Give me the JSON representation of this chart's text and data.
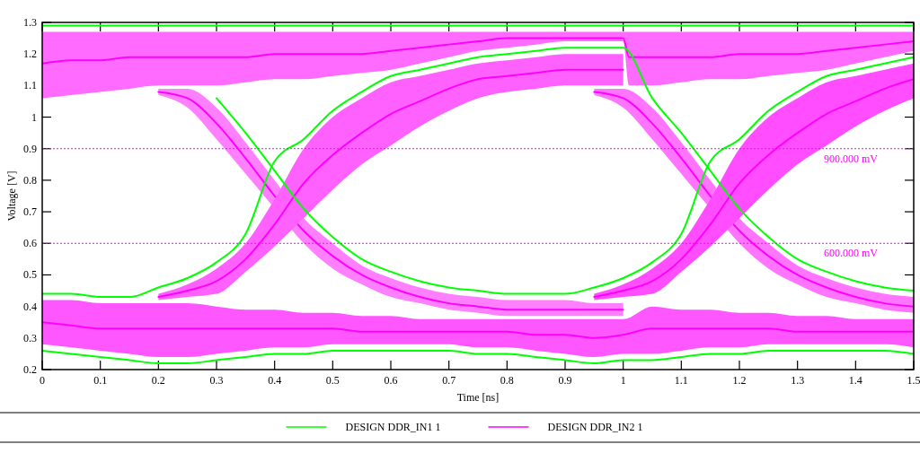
{
  "chart_data": {
    "type": "line",
    "xlabel": "Time [ns]",
    "ylabel": "Voltage [V]",
    "xlim": [
      0,
      1.5
    ],
    "ylim": [
      0.2,
      1.3
    ],
    "xticks": [
      0,
      0.1,
      0.2,
      0.3,
      0.4,
      0.5,
      0.6,
      0.7,
      0.8,
      0.9,
      1,
      1.1,
      1.2,
      1.3,
      1.4,
      1.5
    ],
    "yticks": [
      0.2,
      0.3,
      0.4,
      0.5,
      0.6,
      0.7,
      0.8,
      0.9,
      1,
      1.1,
      1.2,
      1.3
    ],
    "legend": "bottom",
    "ref_lines": [
      {
        "axis": "y",
        "value": 0.9,
        "label": "900.000 mV",
        "color": "#ff00ff",
        "line_style": "dotted"
      },
      {
        "axis": "y",
        "value": 0.6,
        "label": "600.000 mV",
        "color": "#ff00ff",
        "line_style": "dotted"
      }
    ],
    "x": [
      0,
      0.05,
      0.1,
      0.15,
      0.2,
      0.25,
      0.3,
      0.35,
      0.4,
      0.45,
      0.5,
      0.55,
      0.6,
      0.65,
      0.7,
      0.75,
      0.8,
      0.85,
      0.9,
      0.95,
      1,
      1.05,
      1.1,
      1.15,
      1.2,
      1.25,
      1.3,
      1.35,
      1.4,
      1.45,
      1.5
    ],
    "series": [
      {
        "name": "DESIGN DDR_IN1 1",
        "color": "#00ff00",
        "values": [
          1.29,
          1.29,
          1.29,
          1.29,
          1.29,
          1.29,
          1.29,
          1.29,
          1.29,
          1.29,
          1.29,
          1.29,
          1.29,
          1.29,
          1.29,
          1.29,
          1.29,
          1.29,
          1.29,
          1.29,
          1.29,
          1.29,
          1.29,
          1.29,
          1.29,
          1.29,
          1.29,
          1.29,
          1.29,
          1.29,
          1.29
        ]
      },
      {
        "color": "#00ff00",
        "values": [
          0.26,
          0.25,
          0.24,
          0.23,
          0.22,
          0.22,
          0.23,
          0.24,
          0.25,
          0.25,
          0.26,
          0.26,
          0.26,
          0.26,
          0.26,
          0.25,
          0.25,
          0.24,
          0.23,
          0.22,
          0.23,
          0.23,
          0.24,
          0.25,
          0.25,
          0.26,
          0.26,
          0.26,
          0.26,
          0.26,
          0.25
        ]
      },
      {
        "color": "#00ff00",
        "x": [
          0.3,
          0.35,
          0.4,
          0.45,
          0.5,
          0.55,
          0.6,
          0.65,
          0.7,
          0.75,
          0.8,
          0.85,
          0.9,
          0.95,
          1,
          1.05,
          1.1,
          1.15,
          1.2,
          1.25,
          1.3,
          1.35,
          1.4,
          1.45,
          1.5
        ],
        "values": [
          1.06,
          0.95,
          0.83,
          0.71,
          0.62,
          0.55,
          0.51,
          0.48,
          0.46,
          0.45,
          0.44,
          0.44,
          0.44,
          0.46,
          0.49,
          0.54,
          0.63,
          0.86,
          0.93,
          1.02,
          1.08,
          1.13,
          1.15,
          1.17,
          1.19
        ]
      },
      {
        "color": "#00ff00",
        "values": [
          0.44,
          0.44,
          0.43,
          0.43,
          0.46,
          0.49,
          0.54,
          0.63,
          0.86,
          0.93,
          1.02,
          1.08,
          1.13,
          1.15,
          1.17,
          1.19,
          1.2,
          1.21,
          1.22,
          1.22,
          1.22,
          1.06,
          0.95,
          0.83,
          0.71,
          0.62,
          0.55,
          0.51,
          0.48,
          0.46,
          0.45
        ]
      },
      {
        "name": "DESIGN DDR_IN2 1",
        "color": "#ff00ff",
        "x": [
          0,
          0.05,
          0.1,
          0.15,
          0.2,
          0.25,
          0.3,
          0.35,
          0.4,
          0.45,
          0.5,
          0.55,
          0.6,
          0.65,
          0.7,
          0.75,
          0.8,
          0.85,
          0.9,
          0.95,
          1,
          1.01,
          1.05,
          1.1,
          1.15,
          1.2,
          1.25,
          1.3,
          1.35,
          1.4,
          1.45,
          1.5
        ],
        "values": [
          1.17,
          1.18,
          1.18,
          1.19,
          1.19,
          1.19,
          1.19,
          1.19,
          1.2,
          1.2,
          1.2,
          1.2,
          1.21,
          1.22,
          1.23,
          1.24,
          1.25,
          1.25,
          1.25,
          1.25,
          1.25,
          1.19,
          1.19,
          1.19,
          1.19,
          1.2,
          1.2,
          1.2,
          1.21,
          1.22,
          1.23,
          1.24
        ],
        "lower": [
          1.06,
          1.07,
          1.08,
          1.09,
          1.1,
          1.1,
          1.1,
          1.11,
          1.12,
          1.12,
          1.13,
          1.14,
          1.15,
          1.17,
          1.19,
          1.21,
          1.22,
          1.23,
          1.24,
          1.24,
          1.24,
          1.1,
          1.1,
          1.11,
          1.12,
          1.12,
          1.13,
          1.14,
          1.15,
          1.17,
          1.19,
          1.21
        ],
        "upper": [
          1.27,
          1.27,
          1.27,
          1.27,
          1.27,
          1.27,
          1.27,
          1.27,
          1.27,
          1.27,
          1.27,
          1.27,
          1.27,
          1.27,
          1.27,
          1.27,
          1.27,
          1.27,
          1.27,
          1.27,
          1.27,
          1.27,
          1.27,
          1.27,
          1.27,
          1.27,
          1.27,
          1.27,
          1.27,
          1.27,
          1.27,
          1.27
        ]
      },
      {
        "color": "#ff00ff",
        "values": [
          0.35,
          0.34,
          0.33,
          0.33,
          0.33,
          0.33,
          0.33,
          0.33,
          0.33,
          0.33,
          0.33,
          0.32,
          0.32,
          0.32,
          0.32,
          0.32,
          0.32,
          0.31,
          0.31,
          0.3,
          0.31,
          0.33,
          0.33,
          0.33,
          0.33,
          0.33,
          0.32,
          0.32,
          0.32,
          0.32,
          0.32
        ],
        "lower": [
          0.28,
          0.27,
          0.26,
          0.25,
          0.24,
          0.24,
          0.25,
          0.26,
          0.27,
          0.27,
          0.28,
          0.28,
          0.28,
          0.28,
          0.28,
          0.27,
          0.27,
          0.26,
          0.25,
          0.24,
          0.25,
          0.25,
          0.26,
          0.27,
          0.27,
          0.28,
          0.28,
          0.28,
          0.28,
          0.28,
          0.27
        ],
        "upper": [
          0.42,
          0.42,
          0.41,
          0.41,
          0.41,
          0.41,
          0.4,
          0.39,
          0.39,
          0.38,
          0.38,
          0.37,
          0.37,
          0.36,
          0.36,
          0.36,
          0.36,
          0.36,
          0.36,
          0.36,
          0.36,
          0.4,
          0.39,
          0.39,
          0.38,
          0.38,
          0.37,
          0.37,
          0.36,
          0.36,
          0.36
        ]
      },
      {
        "color": "#ff00ff",
        "x": [
          0.2,
          0.25,
          0.3,
          0.35,
          0.4,
          0.45,
          0.5,
          0.55,
          0.6,
          0.65,
          0.7,
          0.75,
          0.8,
          0.85,
          0.9,
          0.95,
          1
        ],
        "values": [
          1.08,
          1.06,
          0.98,
          0.87,
          0.75,
          0.64,
          0.56,
          0.5,
          0.46,
          0.43,
          0.41,
          0.4,
          0.39,
          0.39,
          0.39,
          0.39,
          0.39
        ],
        "lower": [
          1.07,
          1.03,
          0.93,
          0.82,
          0.71,
          0.6,
          0.52,
          0.47,
          0.43,
          0.41,
          0.39,
          0.38,
          0.37,
          0.37,
          0.37,
          0.37,
          0.37
        ],
        "upper": [
          1.09,
          1.09,
          1.03,
          0.92,
          0.8,
          0.68,
          0.6,
          0.53,
          0.49,
          0.46,
          0.44,
          0.43,
          0.42,
          0.42,
          0.42,
          0.41,
          0.41
        ]
      },
      {
        "color": "#ff00ff",
        "x": [
          0.2,
          0.25,
          0.3,
          0.35,
          0.4,
          0.45,
          0.5,
          0.55,
          0.6,
          0.65,
          0.7,
          0.75,
          0.8,
          0.85,
          0.9,
          0.95,
          1
        ],
        "values": [
          0.43,
          0.45,
          0.48,
          0.55,
          0.66,
          0.79,
          0.88,
          0.95,
          1.01,
          1.05,
          1.09,
          1.12,
          1.13,
          1.14,
          1.15,
          1.15,
          1.15
        ],
        "lower": [
          0.42,
          0.43,
          0.44,
          0.51,
          0.59,
          0.68,
          0.77,
          0.85,
          0.91,
          0.97,
          1.02,
          1.06,
          1.08,
          1.09,
          1.1,
          1.1,
          1.1
        ],
        "upper": [
          0.44,
          0.47,
          0.52,
          0.6,
          0.74,
          0.9,
          1,
          1.06,
          1.11,
          1.13,
          1.15,
          1.17,
          1.18,
          1.19,
          1.2,
          1.2,
          1.2
        ]
      },
      {
        "color": "#ff00ff",
        "x": [
          0.95,
          1,
          1.05,
          1.1,
          1.15,
          1.2,
          1.25,
          1.3,
          1.35,
          1.4,
          1.45,
          1.5
        ],
        "values": [
          1.08,
          1.06,
          0.98,
          0.87,
          0.75,
          0.64,
          0.56,
          0.5,
          0.46,
          0.43,
          0.41,
          0.4
        ],
        "lower": [
          1.07,
          1.03,
          0.93,
          0.82,
          0.71,
          0.6,
          0.52,
          0.47,
          0.43,
          0.41,
          0.39,
          0.38
        ],
        "upper": [
          1.09,
          1.09,
          1.03,
          0.92,
          0.8,
          0.68,
          0.6,
          0.53,
          0.49,
          0.46,
          0.44,
          0.43
        ]
      },
      {
        "color": "#ff00ff",
        "x": [
          0.95,
          1,
          1.05,
          1.1,
          1.15,
          1.2,
          1.25,
          1.3,
          1.35,
          1.4,
          1.45,
          1.5
        ],
        "values": [
          0.43,
          0.45,
          0.48,
          0.55,
          0.66,
          0.79,
          0.88,
          0.95,
          1.01,
          1.05,
          1.09,
          1.12
        ],
        "lower": [
          0.42,
          0.43,
          0.44,
          0.51,
          0.59,
          0.68,
          0.77,
          0.85,
          0.91,
          0.97,
          1.02,
          1.06
        ],
        "upper": [
          0.44,
          0.47,
          0.52,
          0.6,
          0.74,
          0.9,
          1,
          1.06,
          1.11,
          1.13,
          1.15,
          1.17
        ]
      }
    ]
  }
}
